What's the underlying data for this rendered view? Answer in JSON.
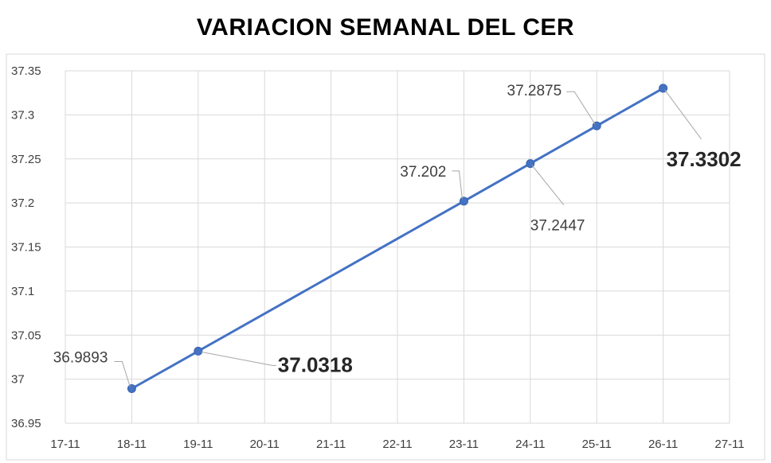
{
  "chart_data": {
    "type": "line",
    "title": "VARIACION SEMANAL DEL CER",
    "xlabel": "",
    "ylabel": "",
    "x_ticks": [
      "17-11",
      "18-11",
      "19-11",
      "20-11",
      "21-11",
      "22-11",
      "23-11",
      "24-11",
      "25-11",
      "26-11",
      "27-11"
    ],
    "y_ticks": [
      "36.95",
      "37",
      "37.05",
      "37.1",
      "37.15",
      "37.2",
      "37.25",
      "37.3",
      "37.35"
    ],
    "ylim": [
      36.95,
      37.35
    ],
    "grid": true,
    "legend": "none",
    "series": [
      {
        "color": "#4472c4",
        "points": [
          {
            "x": "18-11",
            "y": 36.9893,
            "label": "36.9893",
            "emphasis": false
          },
          {
            "x": "19-11",
            "y": 37.0318,
            "label": "37.0318",
            "emphasis": true
          },
          {
            "x": "23-11",
            "y": 37.202,
            "label": "37.202",
            "emphasis": false
          },
          {
            "x": "24-11",
            "y": 37.2447,
            "label": "37.2447",
            "emphasis": false
          },
          {
            "x": "25-11",
            "y": 37.2875,
            "label": "37.2875",
            "emphasis": false
          },
          {
            "x": "26-11",
            "y": 37.3302,
            "label": "37.3302",
            "emphasis": true
          }
        ]
      }
    ]
  }
}
